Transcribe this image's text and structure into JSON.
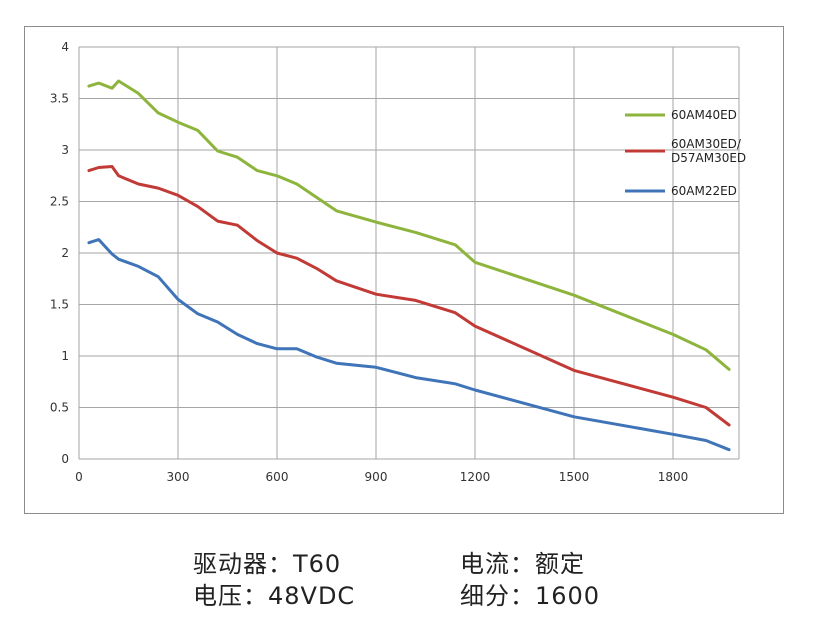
{
  "chart_data": {
    "type": "line",
    "title": "",
    "xlabel": "",
    "ylabel": "",
    "xlim": [
      0,
      2000
    ],
    "ylim": [
      0,
      4
    ],
    "x_ticks": [
      0,
      300,
      600,
      900,
      1200,
      1500,
      1800
    ],
    "y_ticks": [
      0,
      0.5,
      1,
      1.5,
      2,
      2.5,
      3,
      3.5,
      4
    ],
    "grid": true,
    "legend_position": "right",
    "series": [
      {
        "name": "60AM40ED",
        "color": "#8db43c",
        "x": [
          30,
          60,
          100,
          120,
          180,
          240,
          300,
          360,
          420,
          480,
          540,
          600,
          660,
          720,
          780,
          900,
          1020,
          1140,
          1200,
          1500,
          1800,
          1900,
          1970
        ],
        "y": [
          3.62,
          3.65,
          3.6,
          3.67,
          3.55,
          3.36,
          3.27,
          3.19,
          2.99,
          2.93,
          2.8,
          2.75,
          2.67,
          2.54,
          2.41,
          2.3,
          2.2,
          2.08,
          1.91,
          1.59,
          1.21,
          1.06,
          0.87
        ]
      },
      {
        "name": "60AM30ED/\nD57AM30ED",
        "color": "#c23a36",
        "x": [
          30,
          60,
          100,
          120,
          180,
          240,
          300,
          360,
          420,
          480,
          540,
          600,
          660,
          720,
          780,
          900,
          1020,
          1140,
          1200,
          1500,
          1800,
          1900,
          1970
        ],
        "y": [
          2.8,
          2.83,
          2.84,
          2.75,
          2.67,
          2.63,
          2.56,
          2.45,
          2.31,
          2.27,
          2.12,
          2.0,
          1.95,
          1.85,
          1.73,
          1.6,
          1.54,
          1.42,
          1.29,
          0.86,
          0.6,
          0.5,
          0.33
        ]
      },
      {
        "name": "60AM22ED",
        "color": "#3f74b8",
        "x": [
          30,
          60,
          100,
          120,
          180,
          240,
          300,
          360,
          420,
          480,
          540,
          600,
          660,
          720,
          780,
          900,
          1020,
          1140,
          1200,
          1500,
          1800,
          1900,
          1970
        ],
        "y": [
          2.1,
          2.13,
          1.99,
          1.94,
          1.87,
          1.77,
          1.55,
          1.41,
          1.33,
          1.21,
          1.12,
          1.07,
          1.07,
          0.99,
          0.93,
          0.89,
          0.79,
          0.73,
          0.67,
          0.41,
          0.24,
          0.18,
          0.09
        ]
      }
    ]
  },
  "specs": {
    "driver": "驱动器：T60",
    "current": "电流：额定",
    "voltage": "电压：48VDC",
    "microstep": "细分：1600"
  }
}
